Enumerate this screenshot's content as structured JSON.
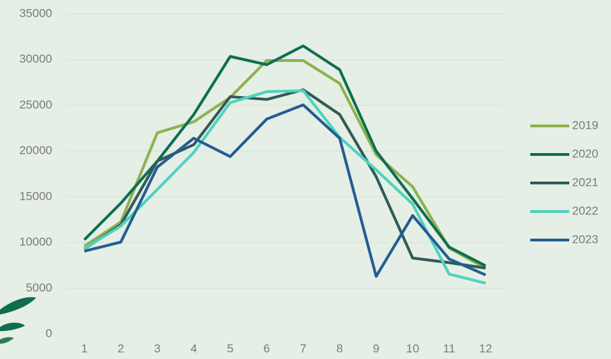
{
  "chart_data": {
    "type": "line",
    "categories": [
      "1",
      "2",
      "3",
      "4",
      "5",
      "6",
      "7",
      "8",
      "9",
      "10",
      "11",
      "12"
    ],
    "series": [
      {
        "name": "2019",
        "color": "#8db24f",
        "values": [
          9600,
          12250,
          22000,
          23200,
          25870,
          29900,
          29900,
          27400,
          19600,
          16100,
          9400,
          7200
        ]
      },
      {
        "name": "2020",
        "color": "#0e6e4f",
        "values": [
          10300,
          14300,
          18900,
          24000,
          30350,
          29450,
          31500,
          28900,
          20000,
          14800,
          9500,
          7450
        ]
      },
      {
        "name": "2021",
        "color": "#2f5b57",
        "values": [
          9300,
          11950,
          18900,
          20700,
          25950,
          25650,
          26700,
          24000,
          17200,
          8300,
          7800,
          7200
        ]
      },
      {
        "name": "2022",
        "color": "#4fd1bf",
        "values": [
          9350,
          11800,
          15800,
          19850,
          25300,
          26500,
          26600,
          21500,
          17950,
          14200,
          6550,
          5550
        ]
      },
      {
        "name": "2023",
        "color": "#235d94",
        "values": [
          9050,
          10050,
          18250,
          21400,
          19400,
          23500,
          25050,
          21400,
          6300,
          12950,
          8200,
          6450
        ]
      }
    ],
    "ylim": [
      0,
      35000
    ],
    "yticks": [
      0,
      5000,
      10000,
      15000,
      20000,
      25000,
      30000,
      35000
    ],
    "grid": true,
    "legend": "right"
  }
}
